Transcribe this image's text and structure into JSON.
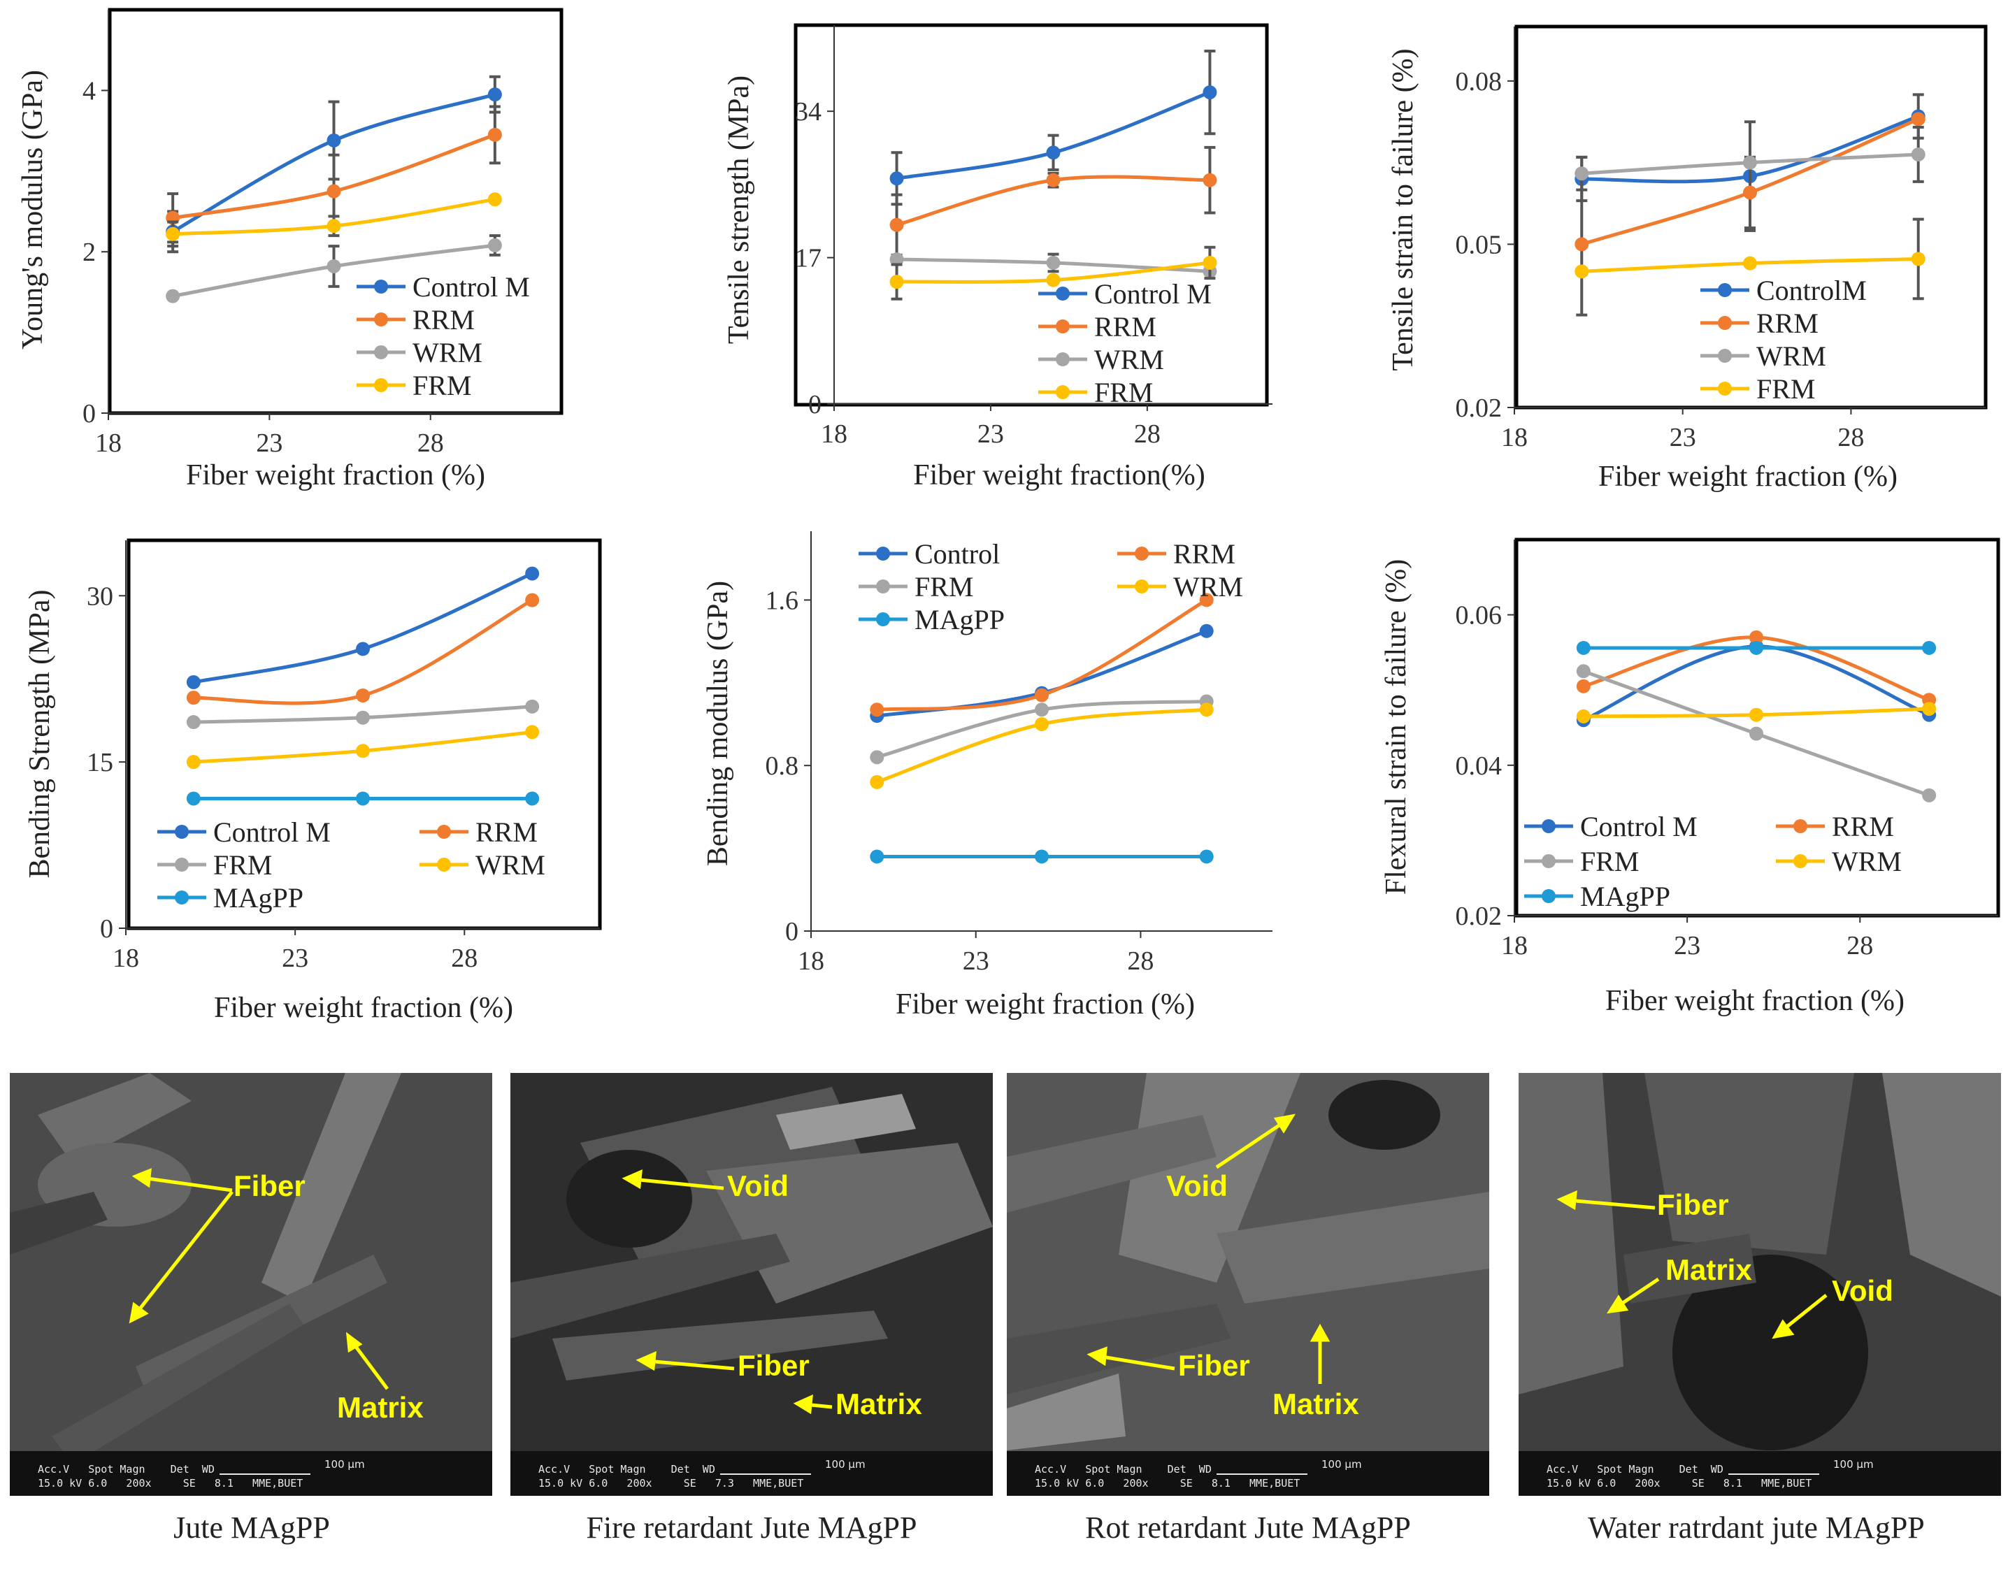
{
  "chart_data": [
    {
      "type": "line",
      "x": [
        20,
        25,
        30
      ],
      "xlabel": "Fiber weight fraction (%)",
      "ylabel": "Young's modulus (GPa)",
      "xticks": [
        18,
        23,
        28
      ],
      "yticks": [
        0,
        2,
        4
      ],
      "xlim": [
        18,
        32
      ],
      "ylim": [
        0,
        5
      ],
      "legend": "bottom-right",
      "error_bars": true,
      "series": [
        {
          "name": "Control M",
          "values": [
            2.25,
            3.38,
            3.95
          ],
          "err": [
            0.25,
            0.48,
            0.22
          ],
          "color": "#2b6fc7"
        },
        {
          "name": "RRM",
          "values": [
            2.42,
            2.75,
            3.45
          ],
          "err": [
            0.3,
            0.45,
            0.35
          ],
          "color": "#f07a2e"
        },
        {
          "name": "WRM",
          "values": [
            1.45,
            1.82,
            2.08
          ],
          "err": [
            0.0,
            0.25,
            0.12
          ],
          "color": "#a5a5a5"
        },
        {
          "name": "FRM",
          "values": [
            2.22,
            2.32,
            2.65
          ],
          "err": [
            0.15,
            0.12,
            0.0
          ],
          "color": "#ffc000"
        }
      ]
    },
    {
      "type": "line",
      "x": [
        20,
        25,
        30
      ],
      "xlabel": "Fiber weight fraction(%)",
      "ylabel": "Tensile strength (MPa)",
      "xticks": [
        18,
        23,
        28
      ],
      "yticks": [
        0,
        17,
        34
      ],
      "xlim": [
        18,
        32
      ],
      "ylim": [
        0,
        44
      ],
      "legend": "bottom-right",
      "error_bars": true,
      "series": [
        {
          "name": "Control M",
          "values": [
            26.2,
            29.2,
            36.2
          ],
          "err": [
            3.0,
            2.0,
            4.8
          ],
          "color": "#2b6fc7"
        },
        {
          "name": "RRM",
          "values": [
            20.8,
            26.0,
            26.0
          ],
          "err": [
            3.5,
            0.8,
            3.8
          ],
          "color": "#f07a2e"
        },
        {
          "name": "WRM",
          "values": [
            16.8,
            16.4,
            15.4
          ],
          "err": [
            0.0,
            1.0,
            0.0
          ],
          "color": "#a5a5a5"
        },
        {
          "name": "FRM",
          "values": [
            14.2,
            14.4,
            16.4
          ],
          "err": [
            2.0,
            0.0,
            1.8
          ],
          "color": "#ffc000"
        }
      ]
    },
    {
      "type": "line",
      "x": [
        20,
        25,
        30
      ],
      "xlabel": "Fiber weight fraction (%)",
      "ylabel": "Tensile strain to failure (%)",
      "xticks": [
        18,
        23,
        28
      ],
      "yticks": [
        0.02,
        0.05,
        0.08
      ],
      "xlim": [
        18,
        32
      ],
      "ylim": [
        0.02,
        0.09
      ],
      "legend": "bottom-right",
      "error_bars": true,
      "series": [
        {
          "name": "ControlM",
          "values": [
            0.062,
            0.0625,
            0.0735
          ],
          "err": [
            0.004,
            0.01,
            0.004
          ],
          "color": "#2b6fc7"
        },
        {
          "name": "RRM",
          "values": [
            0.05,
            0.0595,
            0.073
          ],
          "err": [
            0.013,
            0.0065,
            0.0
          ],
          "color": "#f07a2e"
        },
        {
          "name": "WRM",
          "values": [
            0.063,
            0.065,
            0.0665
          ],
          "err": [
            0.003,
            0.0,
            0.005
          ],
          "color": "#a5a5a5"
        },
        {
          "name": "FRM",
          "values": [
            0.045,
            0.0465,
            0.0473
          ],
          "err": [
            0.0,
            0.0,
            0.0073
          ],
          "color": "#ffc000"
        }
      ]
    },
    {
      "type": "line",
      "x": [
        20,
        25,
        30
      ],
      "xlabel": "Fiber weight fraction (%)",
      "ylabel": "Bending Strength (MPa)",
      "xticks": [
        18,
        23,
        28
      ],
      "yticks": [
        0,
        15,
        30
      ],
      "xlim": [
        18,
        32
      ],
      "ylim": [
        0,
        35
      ],
      "legend": "bottom",
      "series": [
        {
          "name": "Control M",
          "values": [
            22.2,
            25.2,
            32.0
          ],
          "color": "#2b6fc7"
        },
        {
          "name": "RRM",
          "values": [
            20.8,
            21.0,
            29.6
          ],
          "color": "#f07a2e"
        },
        {
          "name": "FRM",
          "values": [
            18.6,
            19.0,
            20.0
          ],
          "color": "#a5a5a5"
        },
        {
          "name": "WRM",
          "values": [
            15.0,
            16.0,
            17.7
          ],
          "color": "#ffc000"
        },
        {
          "name": "MAgPP",
          "values": [
            11.7,
            11.7,
            11.7
          ],
          "color": "#1e9ad6"
        }
      ]
    },
    {
      "type": "line",
      "x": [
        20,
        25,
        30
      ],
      "xlabel": "Fiber weight fraction (%)",
      "ylabel": "Bending modulus (GPa)",
      "xticks": [
        18,
        23,
        28
      ],
      "yticks": [
        0,
        0.8,
        1.6
      ],
      "xlim": [
        18,
        32
      ],
      "ylim": [
        0,
        2.0
      ],
      "legend": "top",
      "series": [
        {
          "name": "Control",
          "values": [
            1.04,
            1.15,
            1.45
          ],
          "color": "#2b6fc7"
        },
        {
          "name": "RRM",
          "values": [
            1.07,
            1.14,
            1.6
          ],
          "color": "#f07a2e"
        },
        {
          "name": "FRM",
          "values": [
            0.84,
            1.07,
            1.11
          ],
          "color": "#a5a5a5"
        },
        {
          "name": "WRM",
          "values": [
            0.72,
            1.0,
            1.07
          ],
          "color": "#ffc000"
        },
        {
          "name": "MAgPP",
          "values": [
            0.36,
            0.36,
            0.36
          ],
          "color": "#1e9ad6"
        }
      ]
    },
    {
      "type": "line",
      "x": [
        20,
        25,
        30
      ],
      "xlabel": "Fiber weight fraction (%)",
      "ylabel": "Flexural strain to failure (%)",
      "xticks": [
        18,
        23,
        28
      ],
      "yticks": [
        0.02,
        0.04,
        0.06
      ],
      "xlim": [
        18,
        32
      ],
      "ylim": [
        0.02,
        0.07
      ],
      "legend": "bottom",
      "series": [
        {
          "name": "Control M",
          "values": [
            0.046,
            0.0558,
            0.0467
          ],
          "color": "#2b6fc7"
        },
        {
          "name": "RRM",
          "values": [
            0.0505,
            0.057,
            0.0487
          ],
          "color": "#f07a2e"
        },
        {
          "name": "FRM",
          "values": [
            0.0525,
            0.0442,
            0.036
          ],
          "color": "#a5a5a5"
        },
        {
          "name": "WRM",
          "values": [
            0.0465,
            0.0467,
            0.0475
          ],
          "color": "#ffc000"
        },
        {
          "name": "MAgPP",
          "values": [
            0.0556,
            0.0556,
            0.0556
          ],
          "color": "#1e9ad6"
        }
      ]
    }
  ],
  "sem_images": [
    {
      "caption": "Jute MAgPP",
      "labels": [
        "Fiber",
        "Matrix"
      ],
      "meta_line1": "Acc.V   Spot Magn    Det  WD",
      "meta_line2": "15.0 kV 6.0   200x     SE   8.1   MME,BUET",
      "scale_label": "100 µm"
    },
    {
      "caption": "Fire retardant Jute MAgPP",
      "labels": [
        "Void",
        "Fiber",
        "Matrix"
      ],
      "meta_line1": "Acc.V   Spot Magn    Det  WD",
      "meta_line2": "15.0 kV 6.0   200x     SE   7.3   MME,BUET",
      "scale_label": "100 µm"
    },
    {
      "caption": "Rot retardant Jute MAgPP",
      "labels": [
        "Void",
        "Fiber",
        "Matrix"
      ],
      "meta_line1": "Acc.V   Spot Magn    Det  WD",
      "meta_line2": "15.0 kV 6.0   200x     SE   8.1   MME,BUET",
      "scale_label": "100 µm"
    },
    {
      "caption": "Water ratrdant jute MAgPP",
      "labels": [
        "Fiber",
        "Matrix",
        "Void"
      ],
      "meta_line1": "Acc.V   Spot Magn    Det  WD",
      "meta_line2": "15.0 kV 6.0   200x     SE   8.1   MME,BUET",
      "scale_label": "100 µm"
    }
  ],
  "colors": {
    "label_yellow": "#ffff00",
    "frame": "#000000"
  }
}
